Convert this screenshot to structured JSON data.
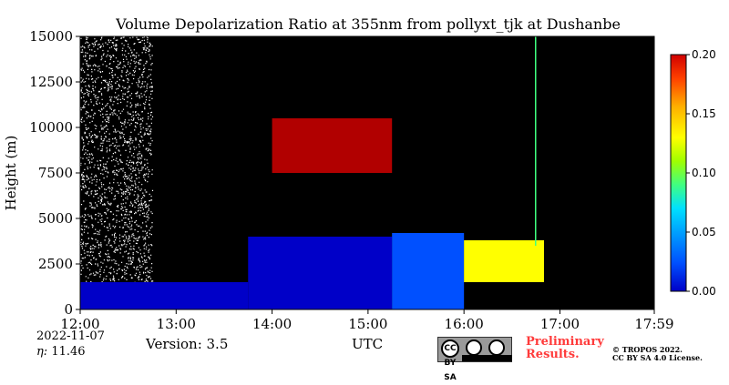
{
  "chart_data": {
    "type": "heatmap",
    "title": "Volume Depolarization Ratio at 355nm from pollyxt_tjk at Dushanbe",
    "ylabel": "Height (m)",
    "xlabel": "UTC",
    "x_ticks": [
      "12:00",
      "13:00",
      "14:00",
      "15:00",
      "16:00",
      "17:00",
      "17:59"
    ],
    "y_ticks": [
      "0",
      "2500",
      "5000",
      "7500",
      "10000",
      "12500",
      "15000"
    ],
    "xlim": [
      "12:00",
      "17:59"
    ],
    "ylim": [
      0,
      15000
    ],
    "colorbar": {
      "range": [
        0.0,
        0.2
      ],
      "ticks": [
        "0.00",
        "0.05",
        "0.10",
        "0.15",
        "0.20"
      ],
      "colormap": [
        "#0000c8",
        "#0050ff",
        "#00a0ff",
        "#00e0ff",
        "#40ff80",
        "#a0ff00",
        "#ffff00",
        "#ffb000",
        "#ff4000",
        "#d00000"
      ]
    },
    "layers": [
      {
        "from": "12:00",
        "to": "13:45",
        "base": 0,
        "top": 1500,
        "value": 0.02
      },
      {
        "from": "13:45",
        "to": "15:15",
        "base": 0,
        "top": 4000,
        "value": 0.02
      },
      {
        "from": "15:15",
        "to": "16:00",
        "base": 0,
        "top": 4200,
        "value": 0.03
      },
      {
        "from": "16:00",
        "to": "17:00",
        "base": 1500,
        "top": 3800,
        "value": 0.12
      },
      {
        "from": "14:00",
        "to": "15:15",
        "base": 7500,
        "top": 10500,
        "value": 0.18
      }
    ]
  },
  "footer": {
    "date": "2022-11-07",
    "eta_label": "η:",
    "eta_value": "11.46",
    "version": "Version: 3.5",
    "license_badge": "CC BY SA",
    "license_badge_by": "BY",
    "license_badge_sa": "SA",
    "preliminary_line1": "Preliminary",
    "preliminary_line2": "Results.",
    "copyright_line1": "© TROPOS 2022.",
    "copyright_line2": "CC BY SA 4.0 License."
  }
}
